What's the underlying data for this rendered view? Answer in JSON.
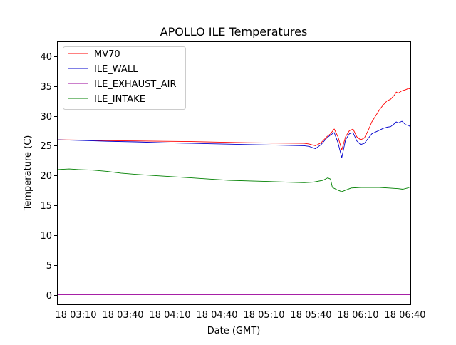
{
  "chart_data": {
    "type": "line",
    "title": "APOLLO ILE Temperatures",
    "xlabel": "Date (GMT)",
    "ylabel": "Temperature (C)",
    "xlim": [
      2.97,
      6.73
    ],
    "ylim": [
      -1.6,
      42.5
    ],
    "yticks": [
      0,
      5,
      10,
      15,
      20,
      25,
      30,
      35,
      40
    ],
    "xticks": [
      {
        "value": 3.1667,
        "label": "18 03:10"
      },
      {
        "value": 3.6667,
        "label": "18 03:40"
      },
      {
        "value": 4.1667,
        "label": "18 04:10"
      },
      {
        "value": 4.6667,
        "label": "18 04:40"
      },
      {
        "value": 5.1667,
        "label": "18 05:10"
      },
      {
        "value": 5.6667,
        "label": "18 05:40"
      },
      {
        "value": 6.1667,
        "label": "18 06:10"
      },
      {
        "value": 6.6667,
        "label": "18 06:40"
      }
    ],
    "legend_position": "top-left",
    "series": [
      {
        "name": "MV70",
        "color": "#ff0000",
        "x": [
          2.97,
          3.2,
          3.5,
          3.8,
          4.1,
          4.4,
          4.7,
          5.0,
          5.3,
          5.6,
          5.65,
          5.72,
          5.78,
          5.84,
          5.88,
          5.92,
          5.96,
          6.0,
          6.04,
          6.08,
          6.12,
          6.16,
          6.2,
          6.24,
          6.28,
          6.32,
          6.36,
          6.4,
          6.44,
          6.48,
          6.52,
          6.56,
          6.58,
          6.6,
          6.64,
          6.68,
          6.71,
          6.73
        ],
        "y": [
          26.0,
          25.95,
          25.85,
          25.8,
          25.75,
          25.7,
          25.6,
          25.5,
          25.45,
          25.4,
          25.3,
          25.0,
          25.5,
          26.5,
          27.0,
          27.8,
          26.5,
          24.3,
          26.5,
          27.5,
          27.8,
          26.5,
          26.0,
          26.3,
          27.5,
          29.0,
          30.0,
          31.0,
          31.8,
          32.5,
          32.8,
          33.5,
          34.0,
          33.8,
          34.2,
          34.4,
          34.6,
          34.5
        ]
      },
      {
        "name": "ILE_WALL",
        "color": "#0000cc",
        "x": [
          2.97,
          3.2,
          3.5,
          3.8,
          4.1,
          4.4,
          4.7,
          5.0,
          5.3,
          5.6,
          5.65,
          5.72,
          5.78,
          5.84,
          5.88,
          5.92,
          5.96,
          6.0,
          6.04,
          6.08,
          6.12,
          6.16,
          6.2,
          6.24,
          6.28,
          6.32,
          6.36,
          6.4,
          6.44,
          6.48,
          6.52,
          6.56,
          6.58,
          6.6,
          6.64,
          6.68,
          6.71,
          6.73
        ],
        "y": [
          26.0,
          25.9,
          25.75,
          25.65,
          25.5,
          25.4,
          25.3,
          25.2,
          25.1,
          25.0,
          24.9,
          24.5,
          25.2,
          26.3,
          26.8,
          27.2,
          25.5,
          23.0,
          26.0,
          27.0,
          27.2,
          25.8,
          25.2,
          25.4,
          26.2,
          27.0,
          27.3,
          27.6,
          27.9,
          28.1,
          28.2,
          28.7,
          29.0,
          28.8,
          29.1,
          28.5,
          28.4,
          28.2
        ]
      },
      {
        "name": "ILE_EXHAUST_AIR",
        "color": "#990099",
        "x": [
          2.97,
          6.73
        ],
        "y": [
          0.0,
          0.0
        ]
      },
      {
        "name": "ILE_INTAKE",
        "color": "#008000",
        "x": [
          2.97,
          3.1,
          3.2,
          3.35,
          3.5,
          3.65,
          3.8,
          4.0,
          4.2,
          4.4,
          4.6,
          4.8,
          5.0,
          5.2,
          5.4,
          5.6,
          5.7,
          5.8,
          5.85,
          5.88,
          5.9,
          5.95,
          6.0,
          6.05,
          6.1,
          6.2,
          6.3,
          6.4,
          6.5,
          6.6,
          6.65,
          6.7,
          6.73
        ],
        "y": [
          21.0,
          21.1,
          21.0,
          20.9,
          20.7,
          20.4,
          20.2,
          20.0,
          19.8,
          19.6,
          19.4,
          19.2,
          19.1,
          19.0,
          18.9,
          18.8,
          18.9,
          19.2,
          19.6,
          19.4,
          18.0,
          17.6,
          17.3,
          17.6,
          17.9,
          18.0,
          18.0,
          18.0,
          17.9,
          17.8,
          17.7,
          17.9,
          18.1
        ]
      }
    ]
  }
}
